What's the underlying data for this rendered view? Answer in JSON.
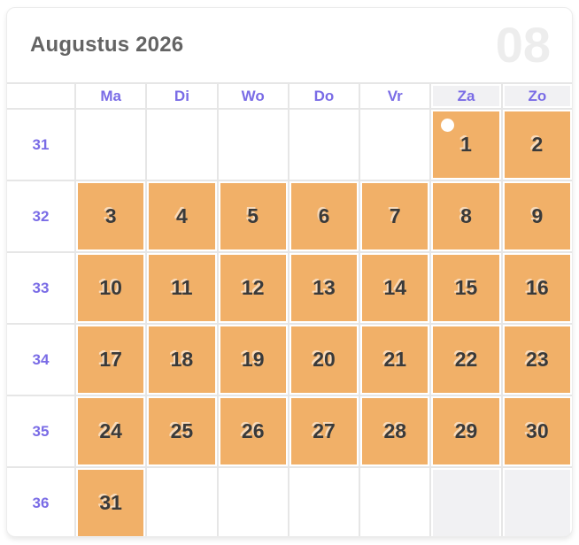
{
  "colors": {
    "accent": "#7a6ce6",
    "marked_day": "#f1b068",
    "day_text": "#3a3a3a",
    "title_text": "#646464",
    "watermark_text": "#ededed",
    "grid_line": "#e6e6e6",
    "weekend_cell": "#f1f1f3"
  },
  "header": {
    "title": "Augustus 2026",
    "month_number": "08"
  },
  "day_headers": [
    {
      "label": "Ma",
      "weekend": false
    },
    {
      "label": "Di",
      "weekend": false
    },
    {
      "label": "Wo",
      "weekend": false
    },
    {
      "label": "Do",
      "weekend": false
    },
    {
      "label": "Vr",
      "weekend": false
    },
    {
      "label": "Za",
      "weekend": true
    },
    {
      "label": "Zo",
      "weekend": true
    }
  ],
  "weeks": [
    {
      "number": "31",
      "days": [
        {
          "label": ""
        },
        {
          "label": ""
        },
        {
          "label": ""
        },
        {
          "label": ""
        },
        {
          "label": ""
        },
        {
          "label": "1",
          "marked": true,
          "dot": true
        },
        {
          "label": "2",
          "marked": true
        }
      ]
    },
    {
      "number": "32",
      "days": [
        {
          "label": "3",
          "marked": true
        },
        {
          "label": "4",
          "marked": true
        },
        {
          "label": "5",
          "marked": true
        },
        {
          "label": "6",
          "marked": true
        },
        {
          "label": "7",
          "marked": true
        },
        {
          "label": "8",
          "marked": true
        },
        {
          "label": "9",
          "marked": true
        }
      ]
    },
    {
      "number": "33",
      "days": [
        {
          "label": "10",
          "marked": true
        },
        {
          "label": "11",
          "marked": true
        },
        {
          "label": "12",
          "marked": true
        },
        {
          "label": "13",
          "marked": true
        },
        {
          "label": "14",
          "marked": true
        },
        {
          "label": "15",
          "marked": true
        },
        {
          "label": "16",
          "marked": true
        }
      ]
    },
    {
      "number": "34",
      "days": [
        {
          "label": "17",
          "marked": true
        },
        {
          "label": "18",
          "marked": true
        },
        {
          "label": "19",
          "marked": true
        },
        {
          "label": "20",
          "marked": true
        },
        {
          "label": "21",
          "marked": true
        },
        {
          "label": "22",
          "marked": true
        },
        {
          "label": "23",
          "marked": true
        }
      ]
    },
    {
      "number": "35",
      "days": [
        {
          "label": "24",
          "marked": true
        },
        {
          "label": "25",
          "marked": true
        },
        {
          "label": "26",
          "marked": true
        },
        {
          "label": "27",
          "marked": true
        },
        {
          "label": "28",
          "marked": true
        },
        {
          "label": "29",
          "marked": true
        },
        {
          "label": "30",
          "marked": true
        }
      ]
    },
    {
      "number": "36",
      "days": [
        {
          "label": "31",
          "marked": true
        },
        {
          "label": ""
        },
        {
          "label": ""
        },
        {
          "label": ""
        },
        {
          "label": ""
        },
        {
          "label": ""
        },
        {
          "label": ""
        }
      ]
    }
  ]
}
